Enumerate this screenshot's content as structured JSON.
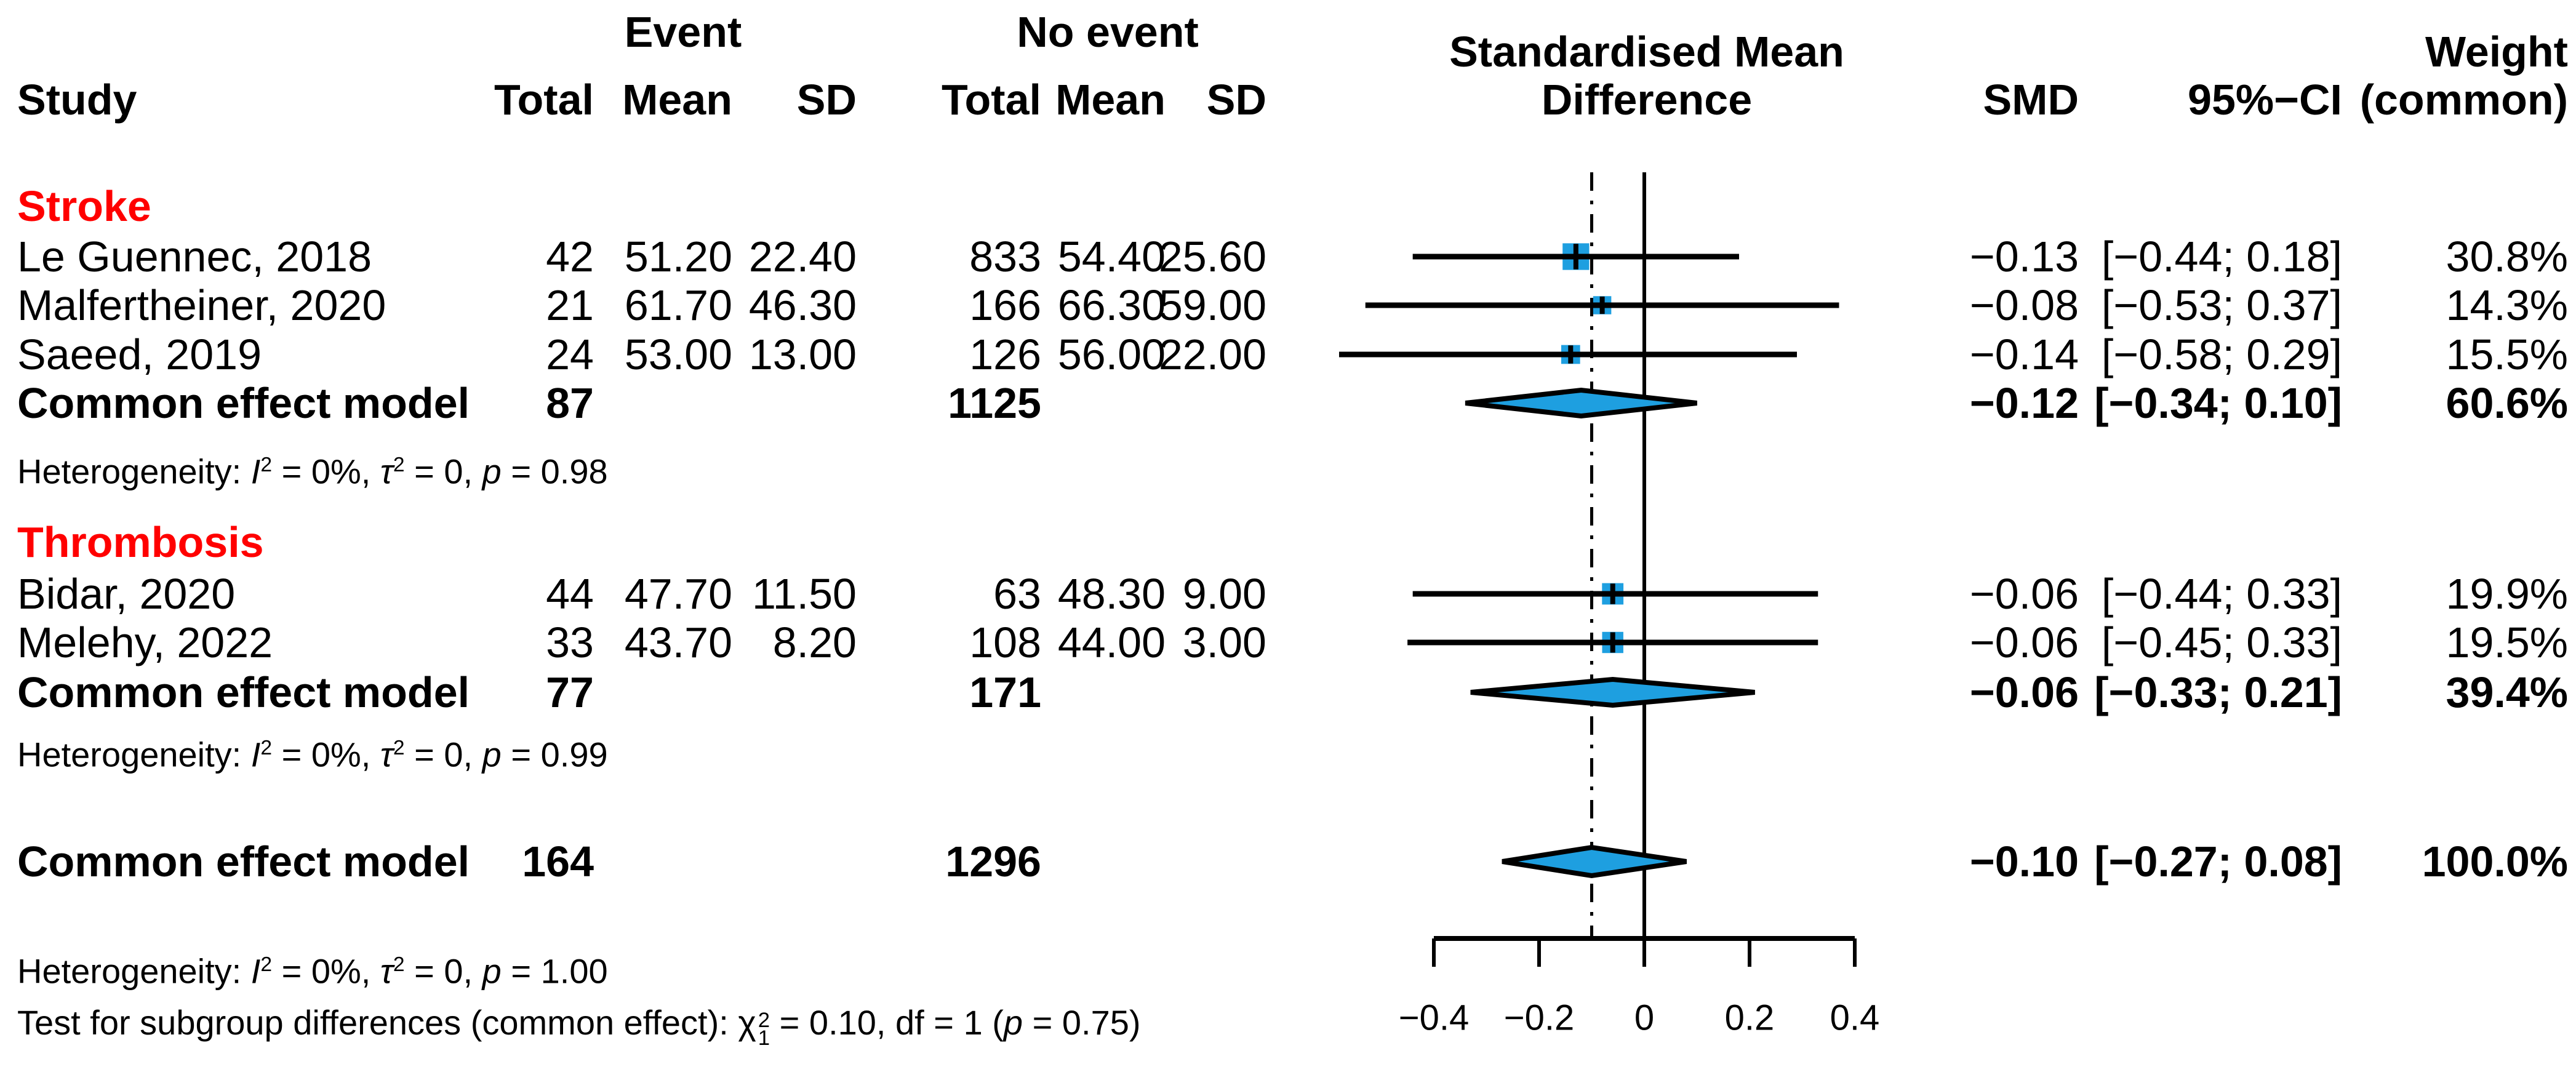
{
  "header": {
    "event_group": "Event",
    "no_event_group": "No event",
    "smd_line1": "Standardised Mean",
    "smd_line2": "Difference",
    "weight_line1": "Weight",
    "weight_line2": "(common)",
    "study": "Study",
    "total": "Total",
    "mean": "Mean",
    "sd": "SD",
    "smd": "SMD",
    "ci": "95%−CI"
  },
  "sections": {
    "stroke": {
      "label": "Stroke",
      "rows": [
        {
          "study": "Le Guennec, 2018",
          "ev_total": "42",
          "ev_mean": "51.20",
          "ev_sd": "22.40",
          "ne_total": "833",
          "ne_mean": "54.40",
          "ne_sd": "25.60",
          "smd": "−0.13",
          "ci": "[−0.44; 0.18]",
          "weight": "30.8%"
        },
        {
          "study": "Malfertheiner, 2020",
          "ev_total": "21",
          "ev_mean": "61.70",
          "ev_sd": "46.30",
          "ne_total": "166",
          "ne_mean": "66.30",
          "ne_sd": "59.00",
          "smd": "−0.08",
          "ci": "[−0.53; 0.37]",
          "weight": "14.3%"
        },
        {
          "study": "Saeed, 2019",
          "ev_total": "24",
          "ev_mean": "53.00",
          "ev_sd": "13.00",
          "ne_total": "126",
          "ne_mean": "56.00",
          "ne_sd": "22.00",
          "smd": "−0.14",
          "ci": "[−0.58; 0.29]",
          "weight": "15.5%"
        }
      ],
      "pooled": {
        "label": "Common effect model",
        "ev_total": "87",
        "ne_total": "1125",
        "smd": "−0.12",
        "ci": "[−0.34; 0.10]",
        "weight": "60.6%"
      },
      "het": [
        "Heterogeneity: ",
        "I",
        "2",
        " = 0%, ",
        "τ",
        "2",
        " = 0, ",
        "p",
        " = 0.98"
      ]
    },
    "thrombosis": {
      "label": "Thrombosis",
      "rows": [
        {
          "study": "Bidar, 2020",
          "ev_total": "44",
          "ev_mean": "47.70",
          "ev_sd": "11.50",
          "ne_total": "63",
          "ne_mean": "48.30",
          "ne_sd": "9.00",
          "smd": "−0.06",
          "ci": "[−0.44; 0.33]",
          "weight": "19.9%"
        },
        {
          "study": "Melehy, 2022",
          "ev_total": "33",
          "ev_mean": "43.70",
          "ev_sd": "8.20",
          "ne_total": "108",
          "ne_mean": "44.00",
          "ne_sd": "3.00",
          "smd": "−0.06",
          "ci": "[−0.45; 0.33]",
          "weight": "19.5%"
        }
      ],
      "pooled": {
        "label": "Common effect model",
        "ev_total": "77",
        "ne_total": "171",
        "smd": "−0.06",
        "ci": "[−0.33; 0.21]",
        "weight": "39.4%"
      },
      "het": [
        "Heterogeneity: ",
        "I",
        "2",
        " = 0%, ",
        "τ",
        "2",
        " = 0, ",
        "p",
        " = 0.99"
      ]
    }
  },
  "overall": {
    "label": "Common effect model",
    "ev_total": "164",
    "ne_total": "1296",
    "smd": "−0.10",
    "ci": "[−0.27; 0.08]",
    "weight": "100.0%"
  },
  "footer": {
    "het": [
      "Heterogeneity: ",
      "I",
      "2",
      " = 0%, ",
      "τ",
      "2",
      " = 0, ",
      "p",
      " = 1.00"
    ],
    "test": [
      "Test for subgroup differences (common effect): ",
      "χ",
      "2",
      "1",
      " =  0.10, df = 1 (",
      "p",
      " = 0.75)"
    ]
  },
  "axis_labels": [
    "−0.4",
    "−0.2",
    "0",
    "0.2",
    "0.4"
  ],
  "colors": {
    "subgroup_red": "#FF0000",
    "marker_blue": "#1E9FE0",
    "line_black": "#000000"
  },
  "chart_data": {
    "type": "forest",
    "effect_measure": "Standardised Mean Difference",
    "model": "common effect",
    "x_axis": {
      "ticks": [
        -0.4,
        -0.2,
        0,
        0.2,
        0.4
      ],
      "range": [
        -0.4,
        0.4
      ],
      "grid": false
    },
    "zero_line": 0,
    "overall_effect_line": -0.1,
    "groups": [
      {
        "name": "Stroke",
        "studies": [
          {
            "study": "Le Guennec, 2018",
            "event": {
              "total": 42,
              "mean": 51.2,
              "sd": 22.4
            },
            "no_event": {
              "total": 833,
              "mean": 54.4,
              "sd": 25.6
            },
            "smd": -0.13,
            "ci": [
              -0.44,
              0.18
            ],
            "weight_pct": 30.8
          },
          {
            "study": "Malfertheiner, 2020",
            "event": {
              "total": 21,
              "mean": 61.7,
              "sd": 46.3
            },
            "no_event": {
              "total": 166,
              "mean": 66.3,
              "sd": 59.0
            },
            "smd": -0.08,
            "ci": [
              -0.53,
              0.37
            ],
            "weight_pct": 14.3
          },
          {
            "study": "Saeed, 2019",
            "event": {
              "total": 24,
              "mean": 53.0,
              "sd": 13.0
            },
            "no_event": {
              "total": 126,
              "mean": 56.0,
              "sd": 22.0
            },
            "smd": -0.14,
            "ci": [
              -0.58,
              0.29
            ],
            "weight_pct": 15.5
          }
        ],
        "pooled": {
          "ev_total": 87,
          "ne_total": 1125,
          "smd": -0.12,
          "ci": [
            -0.34,
            0.1
          ],
          "weight_pct": 60.6
        },
        "heterogeneity": {
          "I2": "0%",
          "tau2": 0,
          "p": 0.98
        }
      },
      {
        "name": "Thrombosis",
        "studies": [
          {
            "study": "Bidar, 2020",
            "event": {
              "total": 44,
              "mean": 47.7,
              "sd": 11.5
            },
            "no_event": {
              "total": 63,
              "mean": 48.3,
              "sd": 9.0
            },
            "smd": -0.06,
            "ci": [
              -0.44,
              0.33
            ],
            "weight_pct": 19.9
          },
          {
            "study": "Melehy, 2022",
            "event": {
              "total": 33,
              "mean": 43.7,
              "sd": 8.2
            },
            "no_event": {
              "total": 108,
              "mean": 44.0,
              "sd": 3.0
            },
            "smd": -0.06,
            "ci": [
              -0.45,
              0.33
            ],
            "weight_pct": 19.5
          }
        ],
        "pooled": {
          "ev_total": 77,
          "ne_total": 171,
          "smd": -0.06,
          "ci": [
            -0.33,
            0.21
          ],
          "weight_pct": 39.4
        },
        "heterogeneity": {
          "I2": "0%",
          "tau2": 0,
          "p": 0.99
        }
      }
    ],
    "overall": {
      "ev_total": 164,
      "ne_total": 1296,
      "smd": -0.1,
      "ci": [
        -0.27,
        0.08
      ],
      "weight_pct": 100.0
    },
    "overall_heterogeneity": {
      "I2": "0%",
      "tau2": 0,
      "p": 1.0
    },
    "subgroup_test": {
      "chi2": 0.1,
      "df": 1,
      "p": 0.75
    }
  }
}
